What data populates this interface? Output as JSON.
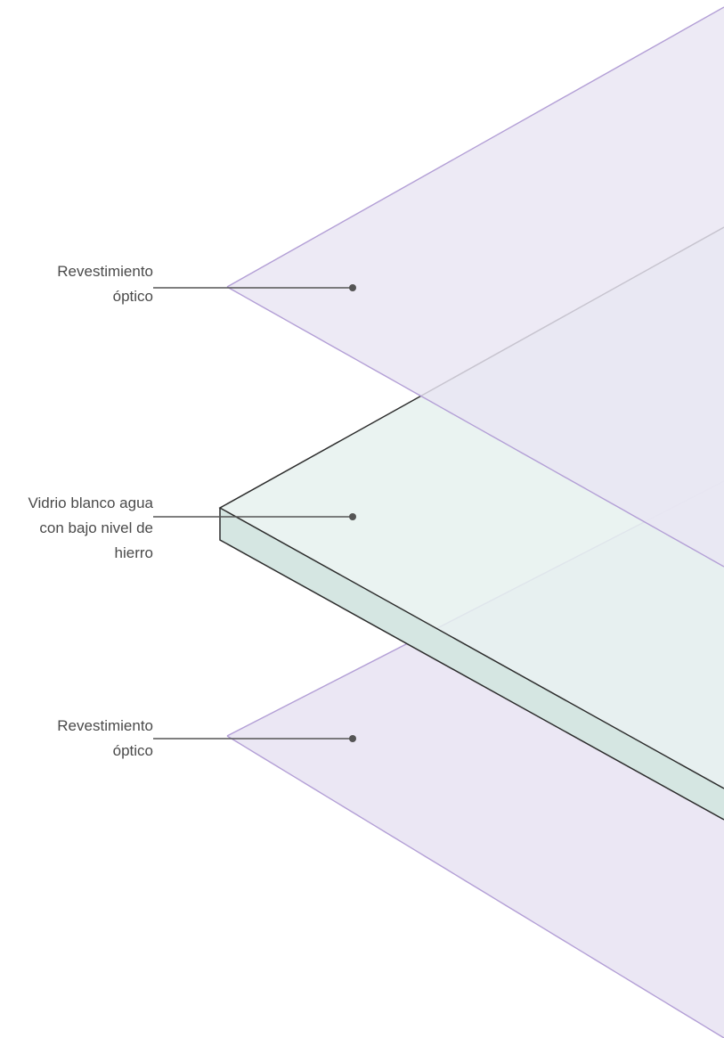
{
  "diagram": {
    "layers": [
      {
        "id": "top-coating",
        "label": "Revestimiento\nóptico",
        "color": "#e9e5f3",
        "edge_color": "#b39fd6"
      },
      {
        "id": "glass",
        "label": "Vidrio blanco agua\ncon bajo nivel de\nhierro",
        "color": "#e6f1ef",
        "side_color": "#d5e6e2",
        "edge_color": "#2c2c2c"
      },
      {
        "id": "bottom-coating",
        "label": "Revestimiento\nóptico",
        "color": "#e9e5f3",
        "edge_color": "#b39fd6"
      }
    ],
    "line_color": "#555555",
    "label_color": "#4a4a4a"
  }
}
